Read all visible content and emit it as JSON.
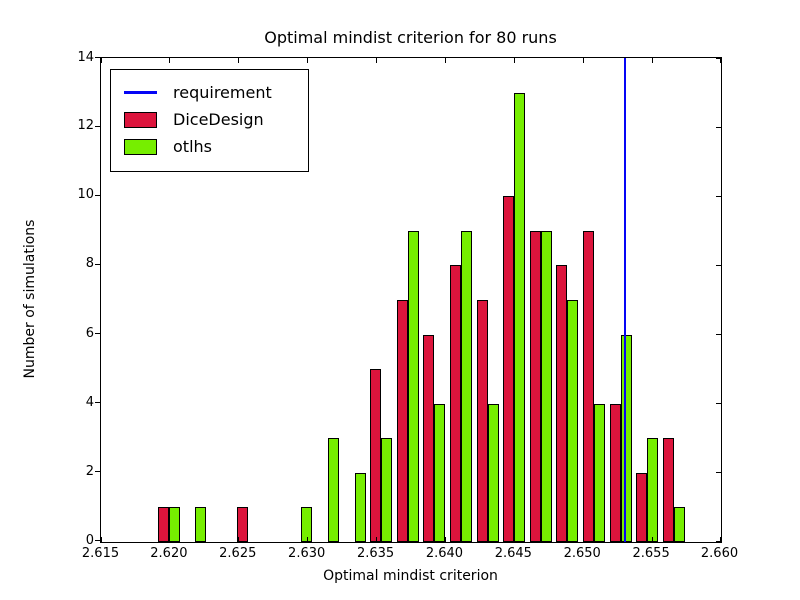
{
  "chart_data": {
    "type": "bar",
    "title": "Optimal mindist criterion for 80 runs",
    "xlabel": "Optimal mindist criterion",
    "ylabel": "Number of simulations",
    "xlim": [
      2.615,
      2.66
    ],
    "ylim": [
      0,
      14
    ],
    "x_tick_values": [
      2.615,
      2.62,
      2.625,
      2.63,
      2.635,
      2.64,
      2.645,
      2.65,
      2.655,
      2.66
    ],
    "x_tick_labels": [
      "2.615",
      "2.620",
      "2.625",
      "2.630",
      "2.635",
      "2.640",
      "2.645",
      "2.650",
      "2.655",
      "2.660"
    ],
    "y_tick_values": [
      0,
      2,
      4,
      6,
      8,
      10,
      12,
      14
    ],
    "y_tick_labels": [
      "0",
      "2",
      "4",
      "6",
      "8",
      "10",
      "12",
      "14"
    ],
    "grid": "off",
    "legend_position": "upper-left",
    "bin_centers": [
      2.6199,
      2.62183,
      2.62376,
      2.62569,
      2.62762,
      2.62955,
      2.63148,
      2.63341,
      2.63534,
      2.63727,
      2.6392,
      2.64113,
      2.64306,
      2.64499,
      2.64692,
      2.64885,
      2.65078,
      2.65271,
      2.65464,
      2.65657
    ],
    "series": [
      {
        "name": "DiceDesign",
        "color": "#DC143C",
        "total_runs": 80,
        "values": [
          1,
          0,
          0,
          1,
          0,
          0,
          0,
          0,
          5,
          7,
          6,
          8,
          7,
          10,
          9,
          8,
          9,
          4,
          2,
          3
        ]
      },
      {
        "name": "otlhs",
        "color": "#76EE00",
        "total_runs": 80,
        "values": [
          1,
          1,
          0,
          0,
          0,
          1,
          3,
          2,
          3,
          9,
          4,
          9,
          4,
          13,
          9,
          7,
          4,
          6,
          3,
          1
        ]
      }
    ],
    "requirement": {
      "label": "requirement",
      "x": 2.653,
      "color": "#0505F5"
    }
  }
}
